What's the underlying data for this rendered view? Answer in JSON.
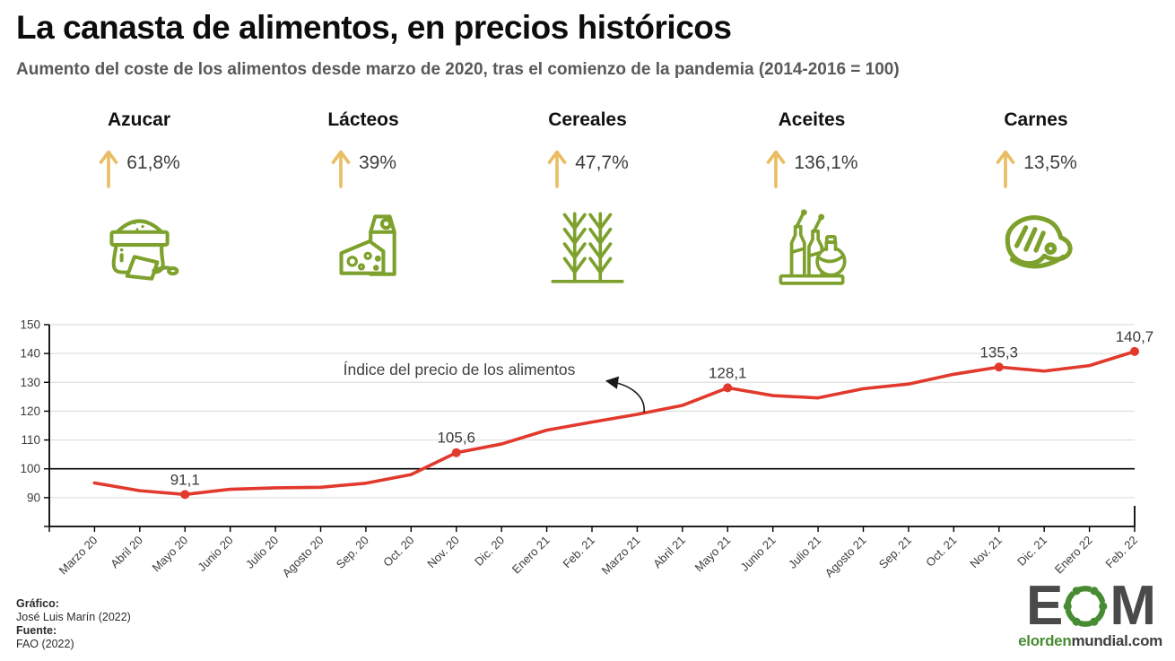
{
  "header": {
    "title": "La canasta de alimentos, en precios históricos",
    "subtitle": "Aumento del coste de los alimentos desde marzo de 2020, tras el comienzo de la pandemia (2014-2016 = 100)"
  },
  "categories": [
    {
      "label": "Azucar",
      "change": "61,8%",
      "icon": "sugar-bag-icon"
    },
    {
      "label": "Lácteos",
      "change": "39%",
      "icon": "milk-cheese-icon"
    },
    {
      "label": "Cereales",
      "change": "47,7%",
      "icon": "wheat-icon"
    },
    {
      "label": "Aceites",
      "change": "136,1%",
      "icon": "oil-bottles-icon"
    },
    {
      "label": "Carnes",
      "change": "13,5%",
      "icon": "steak-icon"
    }
  ],
  "colors": {
    "line_red": "#e2392d",
    "icon_olive": "#7da12c",
    "arrow_gold": "#e9bd62",
    "grid_gray": "#d9d9d9",
    "axis_black": "#000000",
    "text_dark": "#3d3d3d",
    "logo_green": "#478c33",
    "logo_gray": "#4a4a4a"
  },
  "chart_data": {
    "type": "line",
    "series_label": "Índice del precio de los alimentos",
    "categories": [
      "Marzo 20",
      "Abril 20",
      "Mayo 20",
      "Junio 20",
      "Julio 20",
      "Agosto 20",
      "Sep. 20",
      "Oct. 20",
      "Nov. 20",
      "Dic. 20",
      "Enero 21",
      "Feb. 21",
      "Marzo 21",
      "Abril 21",
      "Mayo 21",
      "Junio 21",
      "Julio 21",
      "Agosto 21",
      "Sep. 21",
      "Oct. 21",
      "Nov. 21",
      "Dic. 21",
      "Enero 22",
      "Feb. 22"
    ],
    "values": [
      95.1,
      92.4,
      91.1,
      92.9,
      93.4,
      93.6,
      95.0,
      98.0,
      105.6,
      108.6,
      113.4,
      116.2,
      118.9,
      122.0,
      128.1,
      125.4,
      124.6,
      127.8,
      129.4,
      132.8,
      135.3,
      133.9,
      135.8,
      140.7
    ],
    "labeled_points": [
      {
        "index": 2,
        "text": "91,1"
      },
      {
        "index": 8,
        "text": "105,6"
      },
      {
        "index": 14,
        "text": "128,1"
      },
      {
        "index": 20,
        "text": "135,3"
      },
      {
        "index": 23,
        "text": "140,7"
      }
    ],
    "ylim": [
      80,
      150
    ],
    "yticks": [
      90,
      100,
      110,
      120,
      130,
      140,
      150
    ],
    "baseline": 100,
    "grid": true,
    "legend_position": "annotation-inside-plot",
    "line_color": "#e2392d"
  },
  "footer": {
    "credit_label": "Gráfico:",
    "credit_value": "José Luis Marín (2022)",
    "source_label": "Fuente:",
    "source_value": "FAO (2022)",
    "logo": {
      "e": "E",
      "m": "M",
      "url_green": "elorden",
      "url_gray": "mundial.com"
    }
  }
}
